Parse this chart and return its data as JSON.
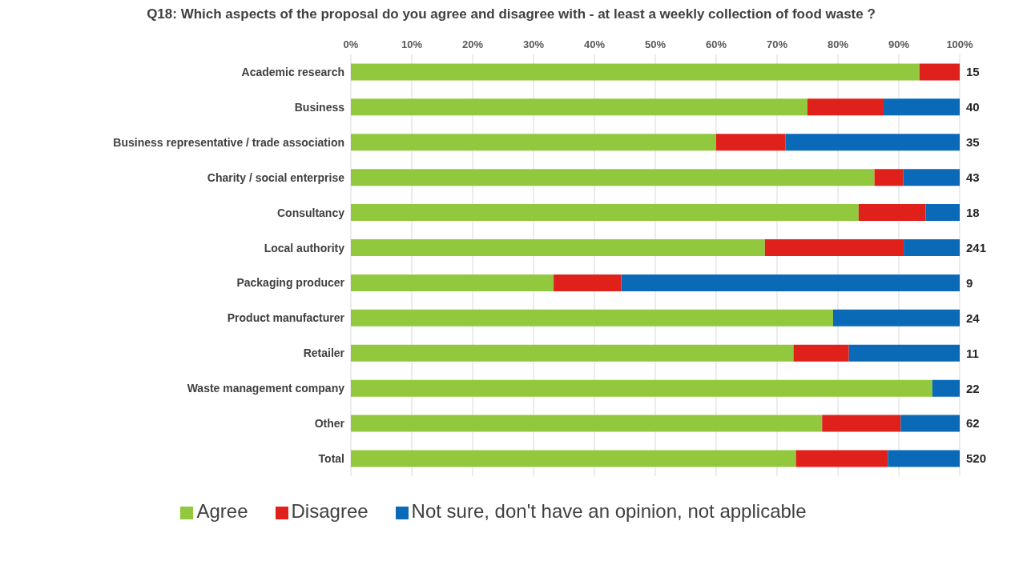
{
  "chart_data": {
    "type": "bar",
    "orientation": "horizontal",
    "stacked": true,
    "title": "Q18: Which aspects of the proposal do you agree and disagree with - at least a weekly collection of food waste ?",
    "categories": [
      "Academic research",
      "Business",
      "Business representative / trade association",
      "Charity / social enterprise",
      "Consultancy",
      "Local authority",
      "Packaging producer",
      "Product manufacturer",
      "Retailer",
      "Waste management company",
      "Other",
      "Total"
    ],
    "series": [
      {
        "name": "Agree",
        "color": "#92c83e",
        "values": [
          93.4,
          75,
          60,
          86,
          83.4,
          68,
          33.3,
          79.2,
          72.7,
          95.5,
          77.4,
          73.1
        ]
      },
      {
        "name": "Disagree",
        "color": "#e0201b",
        "values": [
          6.6,
          12.5,
          11.4,
          4.7,
          11,
          22.8,
          11.1,
          0,
          9.1,
          0,
          12.9,
          15.1
        ]
      },
      {
        "name": "Not sure, don't have an opinion, not applicable",
        "color": "#0a6ab8",
        "values": [
          0,
          12.5,
          28.6,
          9.3,
          5.6,
          9.2,
          55.6,
          20.8,
          18.2,
          4.5,
          9.7,
          11.8
        ]
      }
    ],
    "annotations": [
      "15",
      "40",
      "35",
      "43",
      "18",
      "241",
      "9",
      "24",
      "11",
      "22",
      "62",
      "520"
    ],
    "xlim": [
      0,
      100
    ],
    "xticks": [
      {
        "value": 0,
        "label": "0%"
      },
      {
        "value": 10,
        "label": "10%"
      },
      {
        "value": 20,
        "label": "20%"
      },
      {
        "value": 30,
        "label": "30%"
      },
      {
        "value": 40,
        "label": "40%"
      },
      {
        "value": 50,
        "label": "50%"
      },
      {
        "value": 60,
        "label": "60%"
      },
      {
        "value": 70,
        "label": "70%"
      },
      {
        "value": 80,
        "label": "80%"
      },
      {
        "value": 90,
        "label": "90%"
      },
      {
        "value": 100,
        "label": "100%"
      }
    ],
    "grid": "x",
    "legend": "bottom"
  }
}
